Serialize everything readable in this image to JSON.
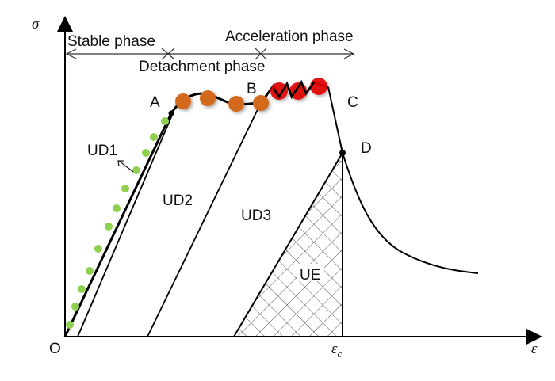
{
  "axes": {
    "y_label": "σ",
    "x_label": "ε",
    "origin_label": "O",
    "critical_strain_label": "ε",
    "critical_strain_sub": "c"
  },
  "phases": {
    "stable": "Stable phase",
    "detachment": "Detachment phase",
    "acceleration": "Acceleration phase"
  },
  "points": {
    "a": "A",
    "b": "B",
    "c": "C",
    "d": "D"
  },
  "regions": {
    "ud1": "UD1",
    "ud2": "UD2",
    "ud3": "UD3",
    "ue": "UE"
  },
  "colors": {
    "stable_markers": "#8fd14f",
    "detachment_markers": "#d2691e",
    "acceleration_markers": "#e00000",
    "line": "#000000",
    "hatch": "#555555"
  }
}
